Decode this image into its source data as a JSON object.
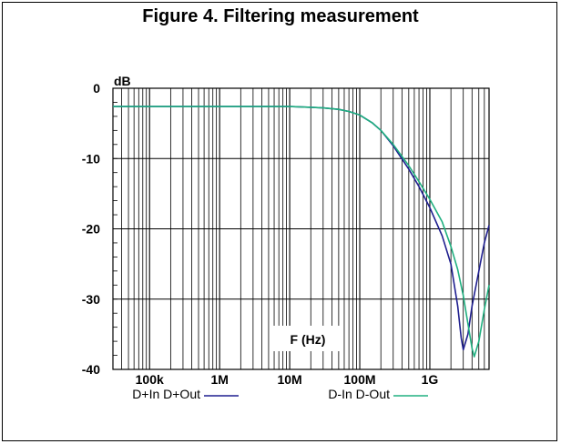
{
  "figure": {
    "title": "Figure 4. Filtering measurement"
  },
  "chart_data": {
    "type": "line",
    "title": "Figure 4. Filtering measurement",
    "xlabel": "F (Hz)",
    "ylabel": "dB",
    "xscale": "log",
    "xlim": [
      30000,
      7000000000
    ],
    "ylim": [
      -40,
      0
    ],
    "grid": true,
    "legend_placement": "bottom",
    "x_tick_labels": [
      "100k",
      "1M",
      "10M",
      "100M",
      "1G"
    ],
    "x_tick_values": [
      100000,
      1000000,
      10000000,
      100000000,
      1000000000
    ],
    "y_tick_labels": [
      "0",
      "-10",
      "-20",
      "-30",
      "-40"
    ],
    "y_tick_values": [
      0,
      -10,
      -20,
      -30,
      -40
    ],
    "series": [
      {
        "name": "D+In D+Out",
        "color": "#1f1f8f",
        "x": [
          30000,
          1000000,
          10000000,
          20000000,
          30000000,
          50000000,
          70000000,
          100000000,
          150000000,
          200000000,
          300000000,
          500000000,
          700000000,
          1000000000,
          1500000000,
          2000000000,
          2500000000,
          2800000000,
          3000000000,
          3500000000,
          4000000000,
          5000000000,
          6000000000,
          7000000000
        ],
        "y": [
          -2.6,
          -2.6,
          -2.6,
          -2.7,
          -2.8,
          -3.0,
          -3.3,
          -3.8,
          -4.9,
          -6.0,
          -8.2,
          -11.5,
          -14.0,
          -17.0,
          -21.0,
          -25.0,
          -31.0,
          -35.5,
          -37.2,
          -35.0,
          -31.0,
          -26.0,
          -22.0,
          -19.5
        ]
      },
      {
        "name": "D-In D-Out",
        "color": "#20b080",
        "x": [
          30000,
          1000000,
          10000000,
          20000000,
          30000000,
          50000000,
          70000000,
          100000000,
          150000000,
          200000000,
          300000000,
          500000000,
          700000000,
          1000000000,
          1500000000,
          2000000000,
          2500000000,
          3000000000,
          3500000000,
          4000000000,
          4300000000,
          5000000000,
          6000000000,
          7000000000
        ],
        "y": [
          -2.6,
          -2.6,
          -2.6,
          -2.7,
          -2.8,
          -3.0,
          -3.3,
          -3.8,
          -4.9,
          -6.0,
          -8.0,
          -11.0,
          -13.3,
          -15.8,
          -19.0,
          -22.5,
          -25.8,
          -29.5,
          -33.5,
          -37.0,
          -38.2,
          -36.0,
          -31.5,
          -28.0
        ]
      }
    ]
  }
}
